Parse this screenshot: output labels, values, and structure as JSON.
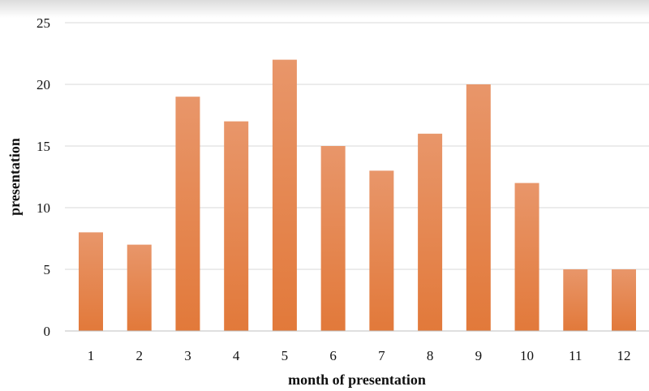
{
  "chart_data": {
    "type": "bar",
    "categories": [
      "1",
      "2",
      "3",
      "4",
      "5",
      "6",
      "7",
      "8",
      "9",
      "10",
      "11",
      "12"
    ],
    "values": [
      8,
      7,
      19,
      17,
      22,
      15,
      13,
      16,
      20,
      12,
      5,
      5
    ],
    "title": "",
    "xlabel": "month of presentation",
    "ylabel": "presentation",
    "ylim": [
      0,
      25
    ],
    "yticks": [
      "0",
      "5",
      "10",
      "15",
      "20",
      "25"
    ],
    "grid": true,
    "legend": "none",
    "bar_color_top": "#e8966a",
    "bar_color_bottom": "#e2793a"
  }
}
